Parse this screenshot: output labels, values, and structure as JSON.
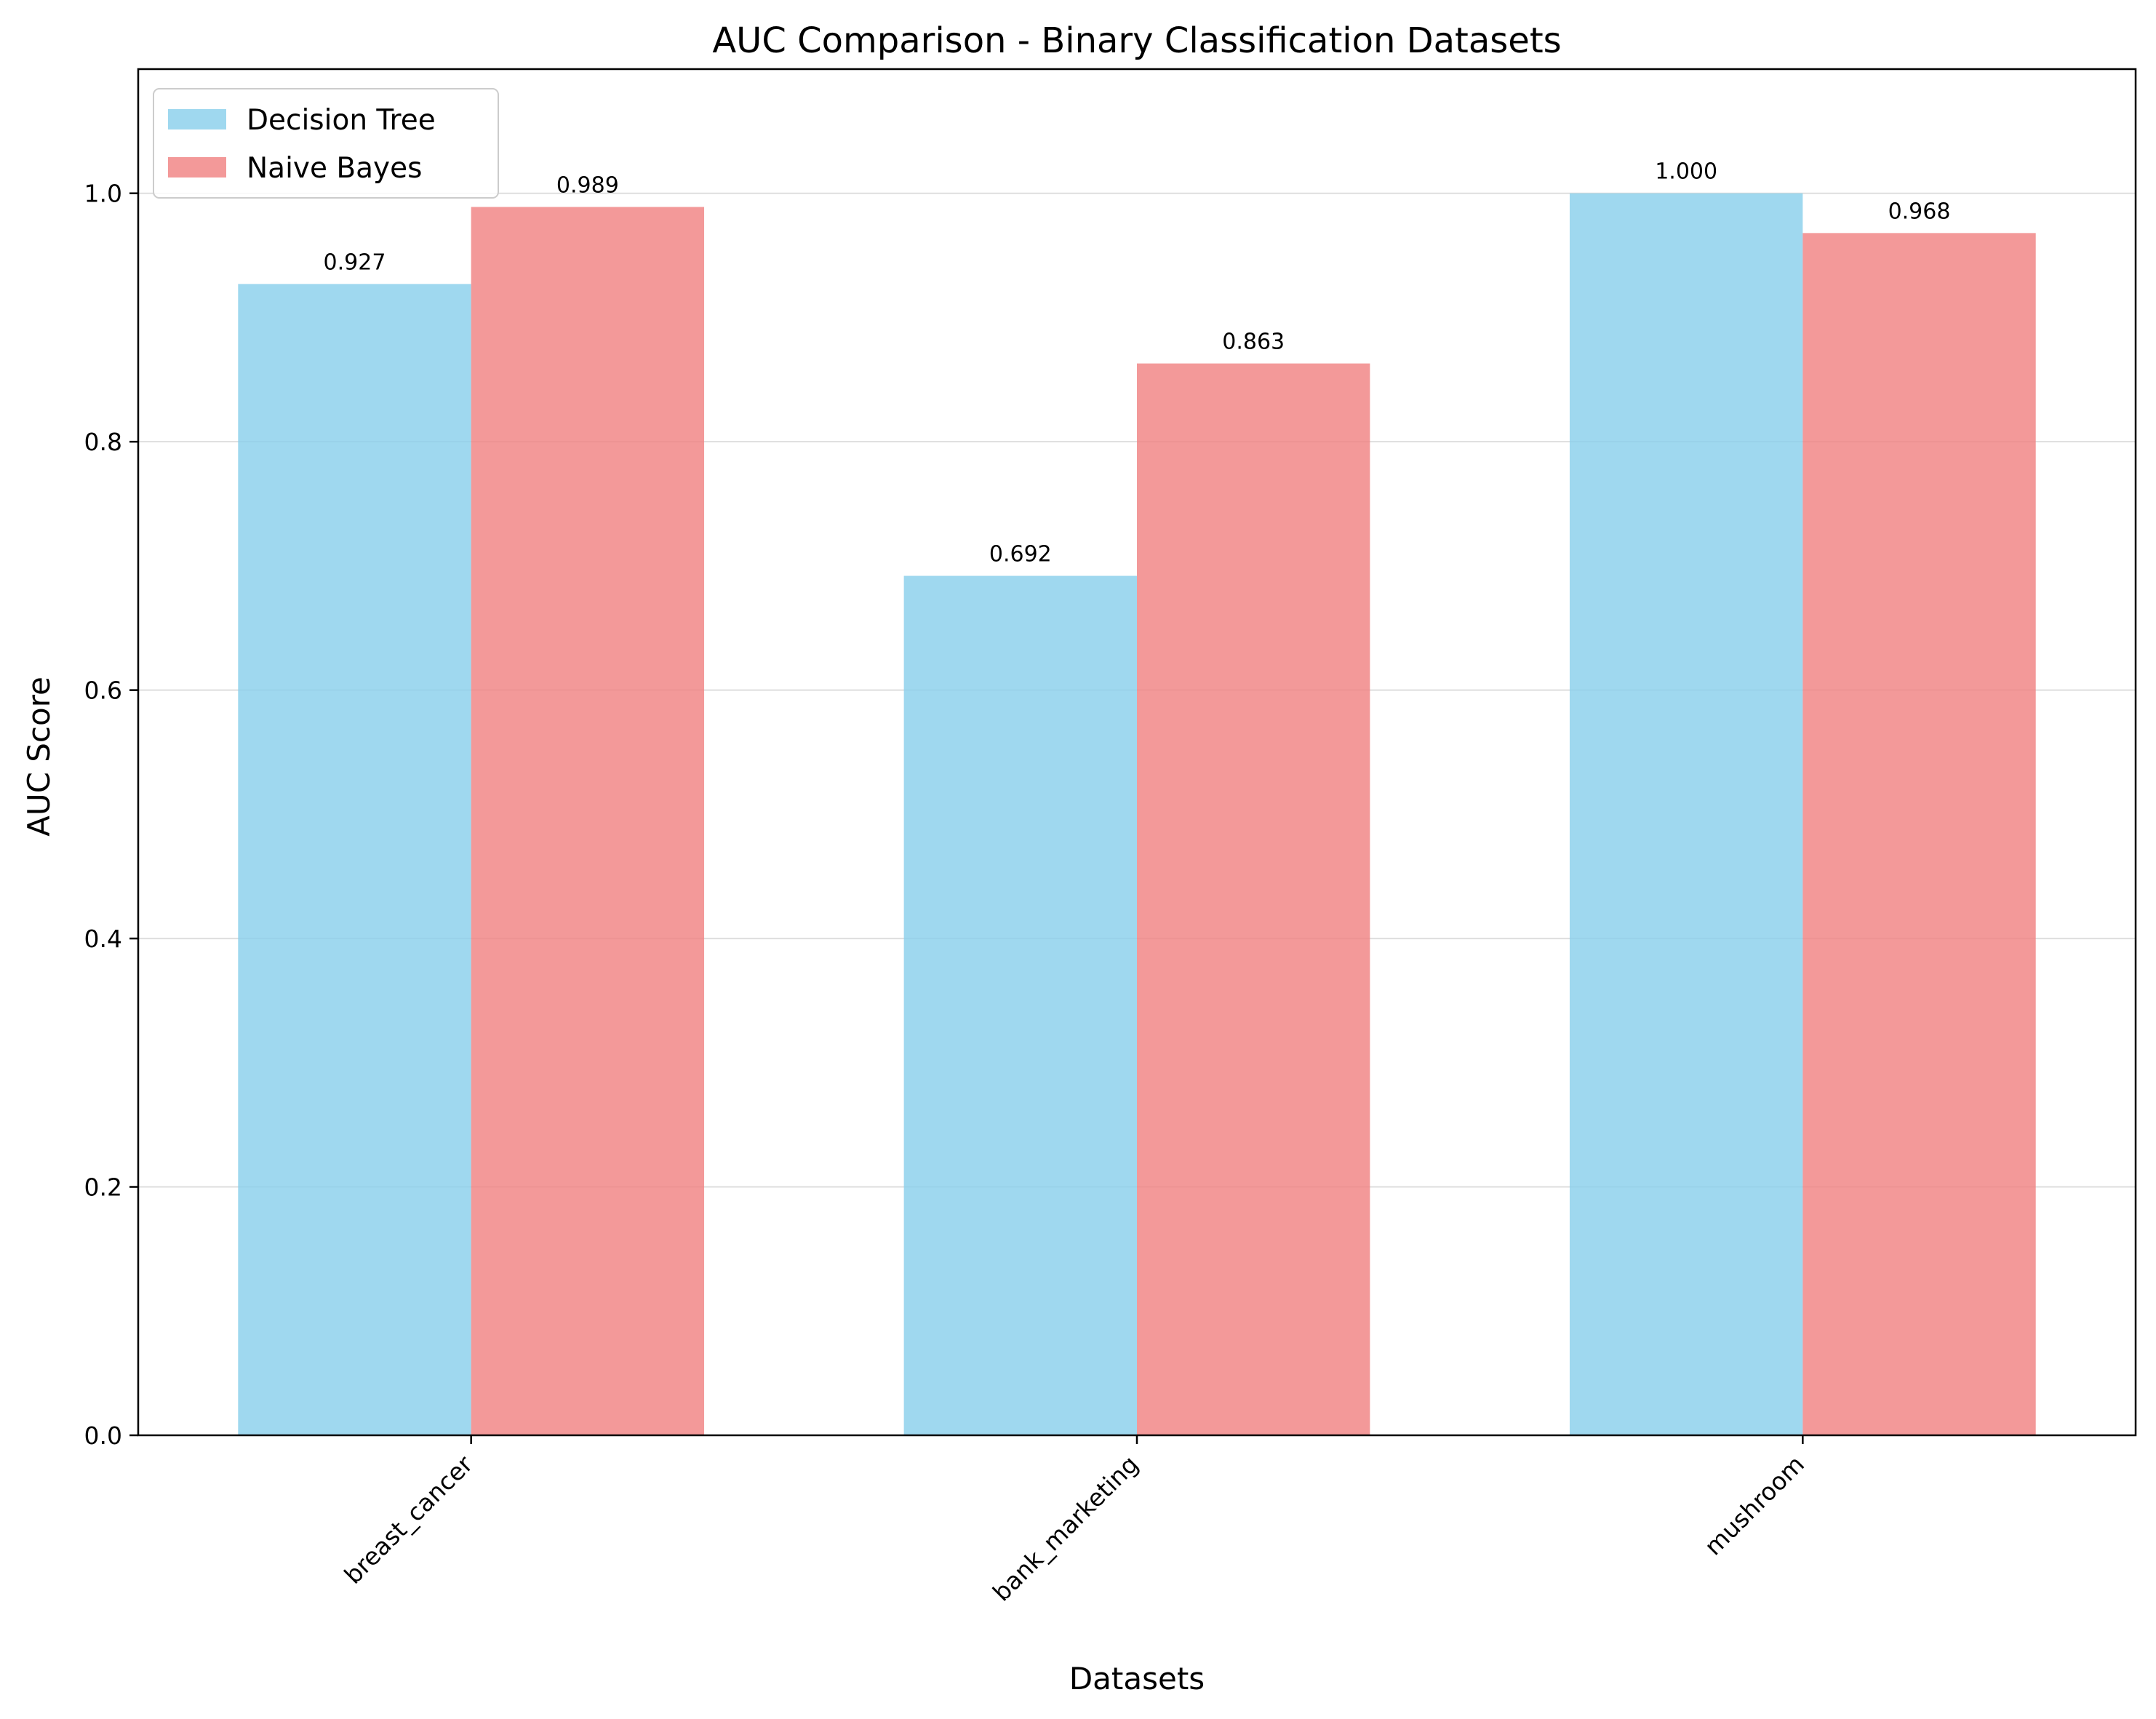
{
  "chart_data": {
    "type": "bar",
    "title": "AUC Comparison - Binary Classification Datasets",
    "xlabel": "Datasets",
    "ylabel": "AUC Score",
    "categories": [
      "breast_cancer",
      "bank_marketing",
      "mushroom"
    ],
    "series": [
      {
        "name": "Decision Tree",
        "values": [
          0.927,
          0.692,
          1.0
        ],
        "labels": [
          "0.927",
          "0.692",
          "1.000"
        ],
        "color": "#87ceeb"
      },
      {
        "name": "Naive Bayes",
        "values": [
          0.989,
          0.863,
          0.968
        ],
        "labels": [
          "0.989",
          "0.863",
          "0.968"
        ],
        "color": "#f08080"
      }
    ],
    "ylim": [
      0,
      1.1
    ],
    "yticks": [
      "0.0",
      "0.2",
      "0.4",
      "0.6",
      "0.8",
      "1.0"
    ],
    "grid": "y",
    "legend_position": "top-left",
    "x_tick_rotation": "45 degrees"
  }
}
